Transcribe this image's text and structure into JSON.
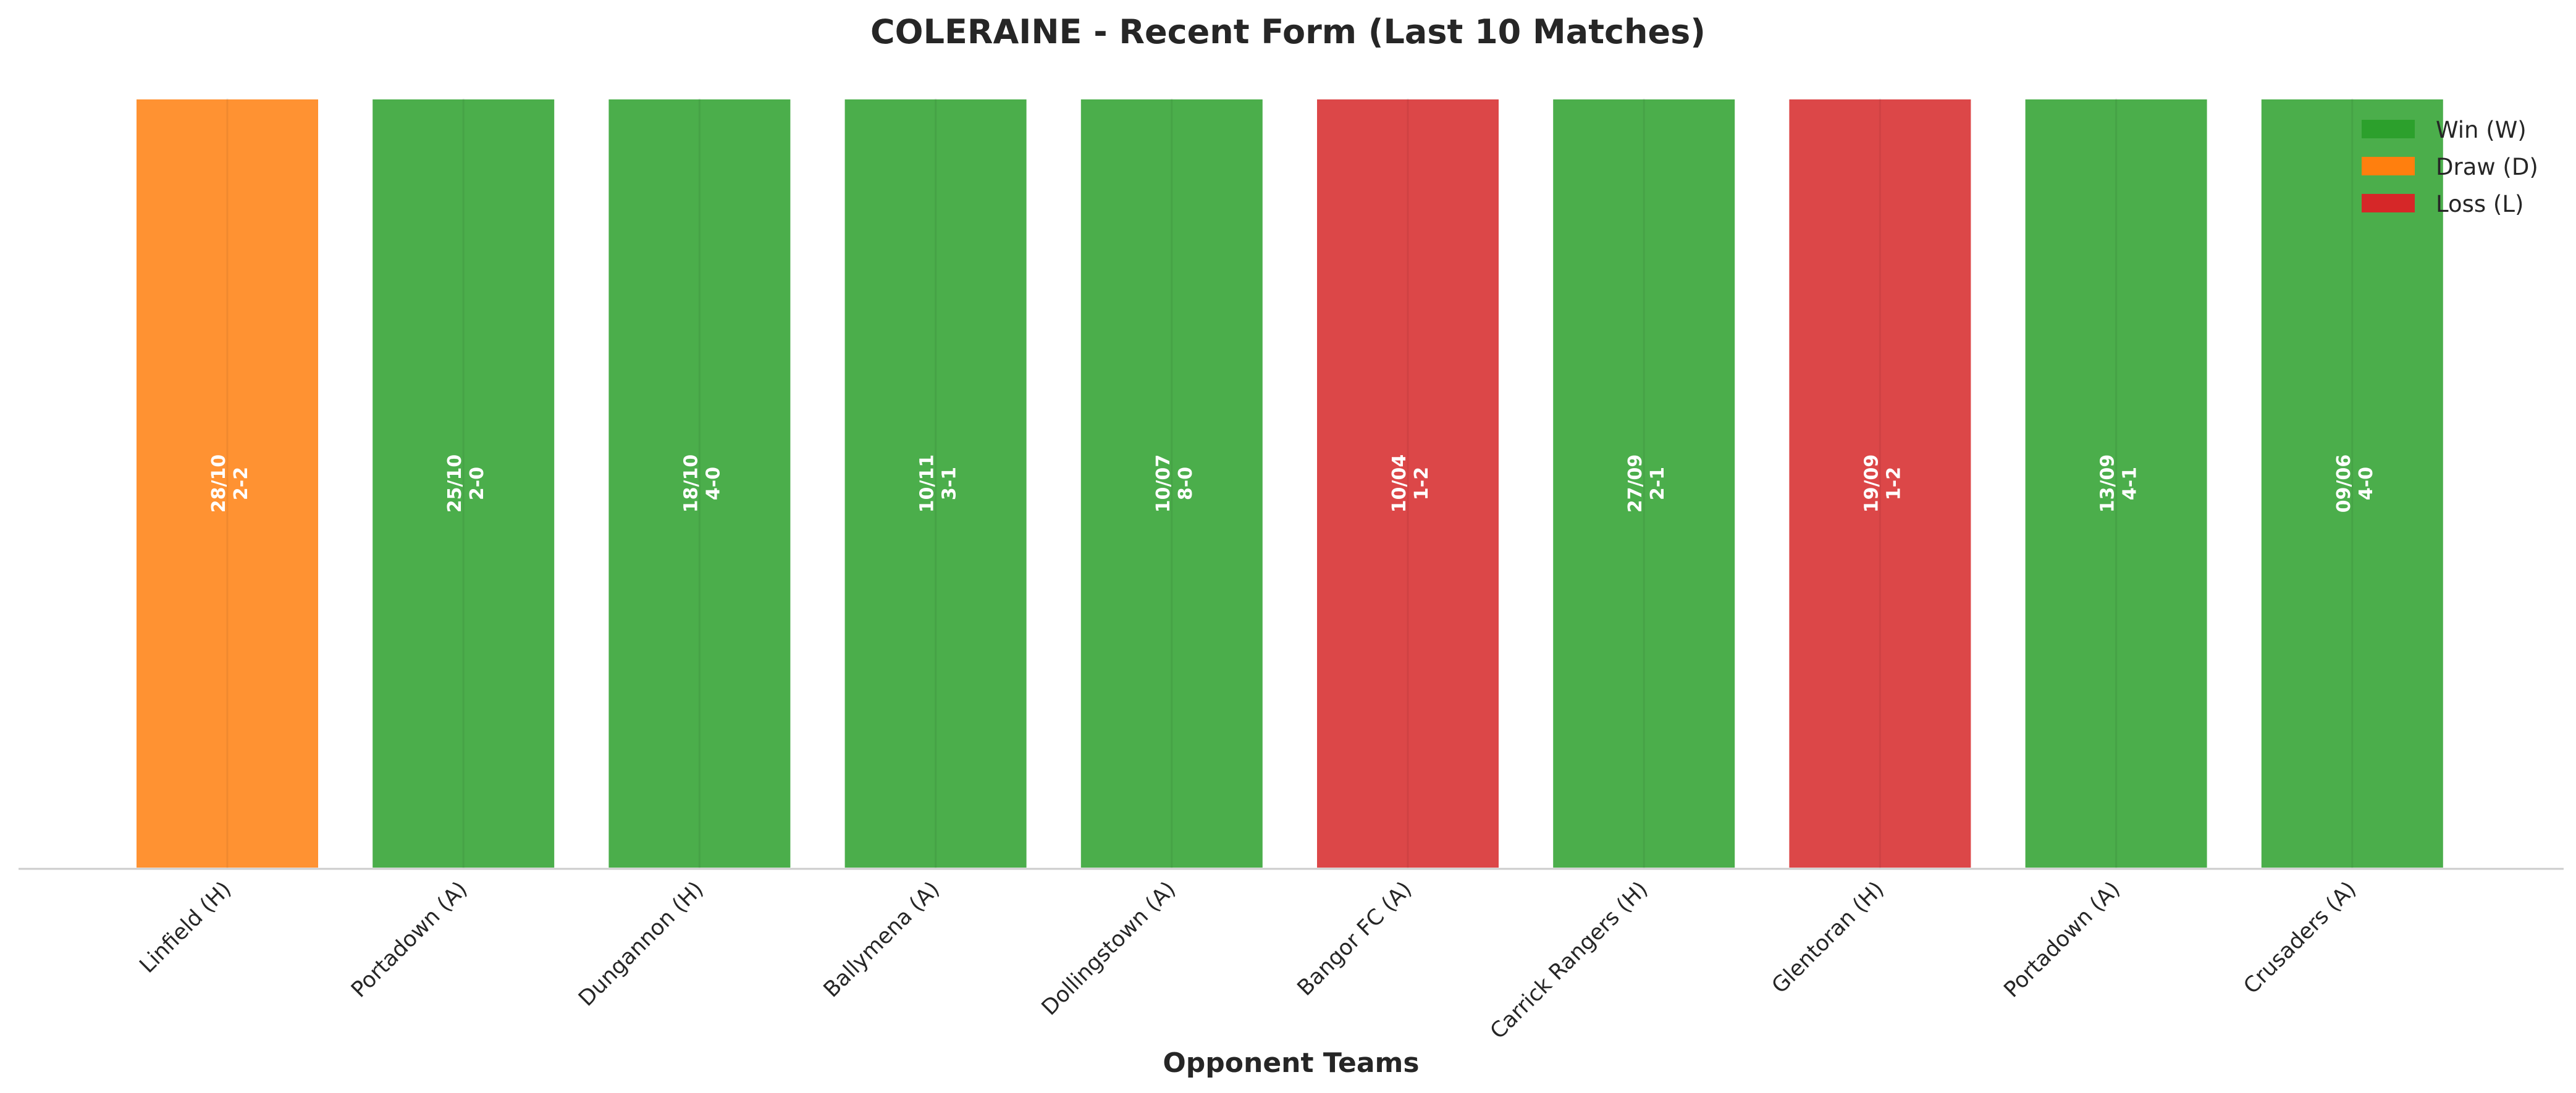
{
  "chart_data": {
    "type": "bar",
    "title": "COLERAINE - Recent Form (Last 10 Matches)",
    "xlabel": "Opponent Teams",
    "ylabel": "",
    "ylim": [
      0,
      1
    ],
    "categories": [
      "Linfield (H)",
      "Portadown (A)",
      "Dungannon (H)",
      "Ballymena (A)",
      "Dollingstown (A)",
      "Bangor FC (A)",
      "Carrick Rangers (H)",
      "Glentoran (H)",
      "Portadown (A)",
      "Crusaders (A)"
    ],
    "values": [
      1,
      1,
      1,
      1,
      1,
      1,
      1,
      1,
      1,
      1
    ],
    "results": [
      "D",
      "W",
      "W",
      "W",
      "W",
      "L",
      "W",
      "L",
      "W",
      "W"
    ],
    "dates": [
      "28/10",
      "25/10",
      "18/10",
      "10/11",
      "10/07",
      "10/04",
      "27/09",
      "19/09",
      "13/09",
      "09/06"
    ],
    "scores": [
      "2-2",
      "2-0",
      "4-0",
      "3-1",
      "8-0",
      "1-2",
      "2-1",
      "1-2",
      "4-1",
      "4-0"
    ],
    "legend": {
      "placement": "top-right",
      "entries": [
        {
          "key": "W",
          "label": "Win (W)",
          "color": "#2ca02c"
        },
        {
          "key": "D",
          "label": "Draw (D)",
          "color": "#ff7f0e"
        },
        {
          "key": "L",
          "label": "Loss (L)",
          "color": "#d62728"
        }
      ]
    },
    "grid": false
  }
}
